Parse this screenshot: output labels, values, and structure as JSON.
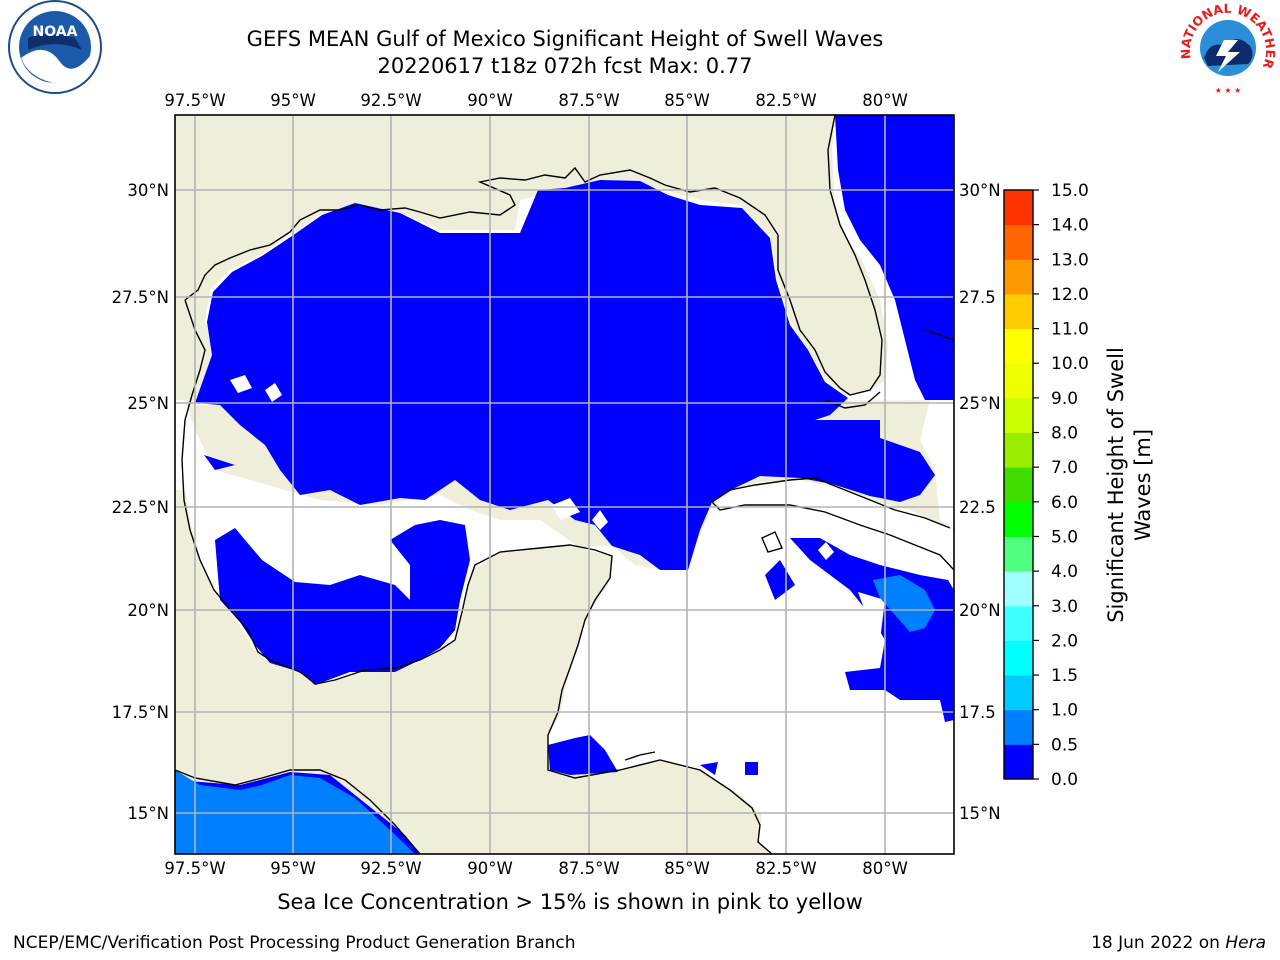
{
  "title": {
    "line1": "GEFS MEAN Gulf of Mexico Significant Height of Swell Waves",
    "line2": "20220617 t18z 072h fcst   Max: 0.77"
  },
  "caption": "Sea Ice Concentration > 15% is shown in pink to yellow",
  "footer": {
    "left": "NCEP/EMC/Verification Post Processing Product Generation Branch",
    "right_prefix": "18 Jun 2022 on ",
    "right_host": "Hera"
  },
  "logos": {
    "left": {
      "text": "NOAA",
      "icon": "noaa-logo"
    },
    "right": {
      "ring_text": "NATIONAL WEATHER SERVICE",
      "icon": "nws-logo"
    }
  },
  "map": {
    "lon_labels": [
      "97.5°W",
      "95°W",
      "92.5°W",
      "90°W",
      "87.5°W",
      "85°W",
      "82.5°W",
      "80°W"
    ],
    "lat_labels_left": [
      "30°N",
      "27.5°N",
      "25°N",
      "22.5°N",
      "20°N",
      "17.5°N",
      "15°N"
    ],
    "lat_labels_right": [
      "30°N",
      "27.5",
      "25°N",
      "22.5",
      "20°N",
      "17.5",
      "15°N"
    ],
    "colors": {
      "land": "#efeedb",
      "ocean_low": "#0000ff",
      "ocean_mid": "#0080ff",
      "gridline": "#b3b3b3",
      "coast": "#000000"
    }
  },
  "colorbar": {
    "label_line1": "Significant Height of Swell",
    "label_line2": "Waves [m]",
    "ticks": [
      "0.0",
      "0.5",
      "1.0",
      "1.5",
      "2.0",
      "3.0",
      "4.0",
      "5.0",
      "6.0",
      "7.0",
      "8.0",
      "9.0",
      "10.0",
      "11.0",
      "12.0",
      "13.0",
      "14.0",
      "15.0"
    ],
    "colors": [
      "#0000ff",
      "#0080ff",
      "#00ccff",
      "#00ffff",
      "#40ffff",
      "#a0ffff",
      "#50ff80",
      "#00ff00",
      "#40dd00",
      "#99ee00",
      "#ccff00",
      "#eeff00",
      "#ffff00",
      "#ffcc00",
      "#ff9900",
      "#ff6600",
      "#ff3300",
      "#ff0000"
    ]
  }
}
